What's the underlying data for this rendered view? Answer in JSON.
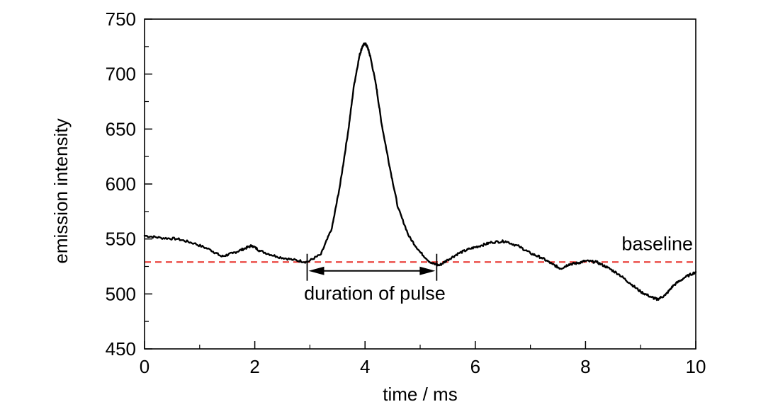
{
  "chart_data": {
    "type": "line",
    "xlabel": "time / ms",
    "ylabel": "emission intensity",
    "xlim": [
      0,
      10
    ],
    "ylim": [
      450,
      750
    ],
    "x_ticks": [
      "0",
      "2",
      "4",
      "6",
      "8",
      "10"
    ],
    "y_ticks": [
      "450",
      "500",
      "550",
      "600",
      "650",
      "700",
      "750"
    ],
    "grid": false,
    "series": [
      {
        "color": "#000000",
        "x": [
          0,
          0.3,
          0.6,
          0.9,
          1.2,
          1.4,
          1.6,
          1.8,
          1.95,
          2.1,
          2.4,
          2.7,
          2.95,
          3.2,
          3.4,
          3.55,
          3.7,
          3.8,
          3.9,
          3.95,
          4.0,
          4.05,
          4.1,
          4.2,
          4.3,
          4.45,
          4.6,
          4.8,
          5.0,
          5.2,
          5.35,
          5.5,
          5.7,
          5.9,
          6.1,
          6.3,
          6.55,
          6.8,
          7.0,
          7.2,
          7.4,
          7.55,
          7.7,
          7.85,
          8.0,
          8.2,
          8.4,
          8.6,
          8.8,
          9.0,
          9.2,
          9.3,
          9.45,
          9.6,
          9.8,
          10.0
        ],
        "y": [
          553,
          551,
          550,
          546,
          540,
          534,
          537,
          541,
          544,
          539,
          534,
          531,
          529,
          536,
          560,
          600,
          650,
          690,
          717,
          725,
          728,
          724,
          715,
          690,
          655,
          615,
          578,
          552,
          538,
          528,
          526,
          531,
          537,
          541,
          544,
          547,
          548,
          543,
          537,
          533,
          527,
          523,
          527,
          528,
          530,
          529,
          524,
          518,
          510,
          502,
          497,
          495,
          499,
          508,
          515,
          520
        ]
      }
    ],
    "baseline": {
      "y": 529,
      "color": "#e8302a",
      "label": "baseline"
    },
    "pulse_duration": {
      "x_start": 2.95,
      "x_end": 5.3,
      "label": "duration of pulse"
    }
  }
}
